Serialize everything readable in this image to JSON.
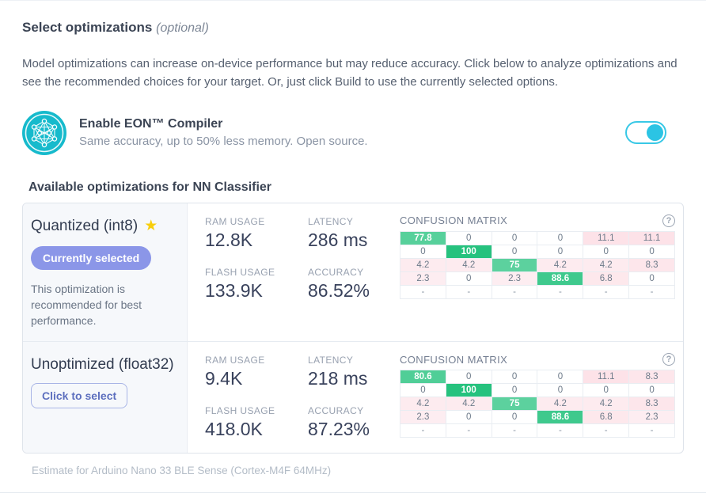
{
  "header": {
    "title": "Select optimizations",
    "title_suffix": "(optional)",
    "description": "Model optimizations can increase on-device performance but may reduce accuracy. Click below to analyze optimizations and see the recommended choices for your target. Or, just click Build to use the currently selected options."
  },
  "eon": {
    "title": "Enable EON™ Compiler",
    "subtitle": "Same accuracy, up to 50% less memory. Open source.",
    "toggle_state": "on",
    "icon": "network-graph-icon",
    "accent_color": "#16bacc",
    "toggle_color": "#2bc4e4"
  },
  "section": {
    "title": "Available optimizations for NN Classifier"
  },
  "options": [
    {
      "name": "Quantized (int8)",
      "starred": true,
      "badge": "Currently selected",
      "button": null,
      "note": "This optimization is recommended for best performance.",
      "stats": [
        {
          "label": "RAM USAGE",
          "value": "12.8K"
        },
        {
          "label": "LATENCY",
          "value": "286 ms"
        },
        {
          "label": "FLASH USAGE",
          "value": "133.9K"
        },
        {
          "label": "ACCURACY",
          "value": "86.52%"
        }
      ],
      "confusion_matrix": {
        "title": "CONFUSION MATRIX",
        "rows": [
          [
            {
              "v": "77.8",
              "t": "g"
            },
            {
              "v": "0",
              "t": "z"
            },
            {
              "v": "0",
              "t": "z"
            },
            {
              "v": "0",
              "t": "z"
            },
            {
              "v": "11.1",
              "t": "b"
            },
            {
              "v": "11.1",
              "t": "b"
            }
          ],
          [
            {
              "v": "0",
              "t": "z"
            },
            {
              "v": "100",
              "t": "g"
            },
            {
              "v": "0",
              "t": "z"
            },
            {
              "v": "0",
              "t": "z"
            },
            {
              "v": "0",
              "t": "z"
            },
            {
              "v": "0",
              "t": "z"
            }
          ],
          [
            {
              "v": "4.2",
              "t": "b"
            },
            {
              "v": "4.2",
              "t": "b"
            },
            {
              "v": "75",
              "t": "g"
            },
            {
              "v": "4.2",
              "t": "b"
            },
            {
              "v": "4.2",
              "t": "b"
            },
            {
              "v": "8.3",
              "t": "b"
            }
          ],
          [
            {
              "v": "2.3",
              "t": "b"
            },
            {
              "v": "0",
              "t": "z"
            },
            {
              "v": "2.3",
              "t": "b"
            },
            {
              "v": "88.6",
              "t": "g"
            },
            {
              "v": "6.8",
              "t": "b"
            },
            {
              "v": "0",
              "t": "z"
            }
          ],
          [
            {
              "v": "-",
              "t": "e"
            },
            {
              "v": "-",
              "t": "e"
            },
            {
              "v": "-",
              "t": "e"
            },
            {
              "v": "-",
              "t": "e"
            },
            {
              "v": "-",
              "t": "e"
            },
            {
              "v": "-",
              "t": "e"
            }
          ]
        ]
      }
    },
    {
      "name": "Unoptimized (float32)",
      "starred": false,
      "badge": null,
      "button": "Click to select",
      "note": null,
      "stats": [
        {
          "label": "RAM USAGE",
          "value": "9.4K"
        },
        {
          "label": "LATENCY",
          "value": "218 ms"
        },
        {
          "label": "FLASH USAGE",
          "value": "418.0K"
        },
        {
          "label": "ACCURACY",
          "value": "87.23%"
        }
      ],
      "confusion_matrix": {
        "title": "CONFUSION MATRIX",
        "rows": [
          [
            {
              "v": "80.6",
              "t": "g"
            },
            {
              "v": "0",
              "t": "z"
            },
            {
              "v": "0",
              "t": "z"
            },
            {
              "v": "0",
              "t": "z"
            },
            {
              "v": "11.1",
              "t": "b"
            },
            {
              "v": "8.3",
              "t": "b"
            }
          ],
          [
            {
              "v": "0",
              "t": "z"
            },
            {
              "v": "100",
              "t": "g"
            },
            {
              "v": "0",
              "t": "z"
            },
            {
              "v": "0",
              "t": "z"
            },
            {
              "v": "0",
              "t": "z"
            },
            {
              "v": "0",
              "t": "z"
            }
          ],
          [
            {
              "v": "4.2",
              "t": "b"
            },
            {
              "v": "4.2",
              "t": "b"
            },
            {
              "v": "75",
              "t": "g"
            },
            {
              "v": "4.2",
              "t": "b"
            },
            {
              "v": "4.2",
              "t": "b"
            },
            {
              "v": "8.3",
              "t": "b"
            }
          ],
          [
            {
              "v": "2.3",
              "t": "b"
            },
            {
              "v": "0",
              "t": "z"
            },
            {
              "v": "0",
              "t": "z"
            },
            {
              "v": "88.6",
              "t": "g"
            },
            {
              "v": "6.8",
              "t": "b"
            },
            {
              "v": "2.3",
              "t": "b"
            }
          ],
          [
            {
              "v": "-",
              "t": "e"
            },
            {
              "v": "-",
              "t": "e"
            },
            {
              "v": "-",
              "t": "e"
            },
            {
              "v": "-",
              "t": "e"
            },
            {
              "v": "-",
              "t": "e"
            },
            {
              "v": "-",
              "t": "e"
            }
          ]
        ]
      }
    }
  ],
  "footer": {
    "estimate": "Estimate for Arduino Nano 33 BLE Sense (Cortex-M4F 64MHz)"
  },
  "colors": {
    "matrix_good": "#26c27e",
    "matrix_bad": "#f26786",
    "badge_bg": "#8b96e8",
    "star": "#f8ce0b"
  }
}
